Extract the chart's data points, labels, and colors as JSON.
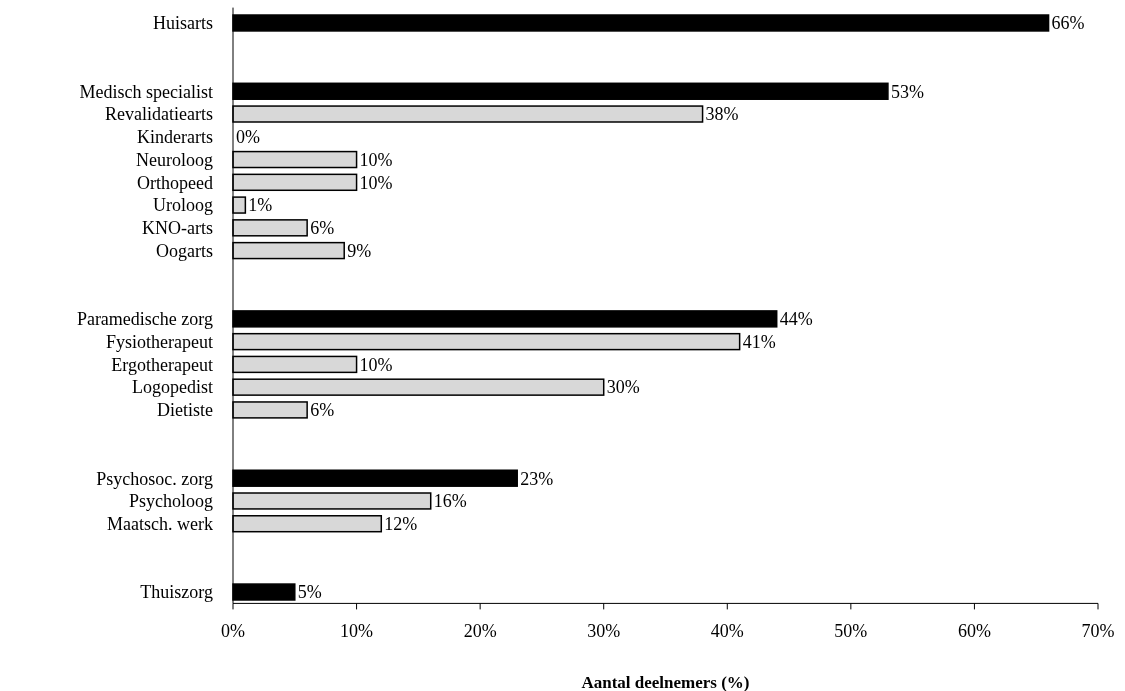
{
  "chart_data": {
    "type": "bar",
    "orientation": "horizontal",
    "xlabel": "Aantal deelnemers (%)",
    "categories": [
      "Huisarts",
      null,
      null,
      "Medisch specialist",
      "Revalidatiearts",
      "Kinderarts",
      "Neuroloog",
      "Orthopeed",
      "Uroloog",
      "KNO-arts",
      "Oogarts",
      null,
      null,
      "Paramedische zorg",
      "Fysiotherapeut",
      "Ergotherapeut",
      "Logopedist",
      "Dietiste",
      null,
      null,
      "Psychosoc. zorg",
      "Psycholoog",
      "Maatsch. werk",
      null,
      null,
      "Thuiszorg"
    ],
    "values": [
      66,
      null,
      null,
      53,
      38,
      0,
      10,
      10,
      1,
      6,
      9,
      null,
      null,
      44,
      41,
      10,
      30,
      6,
      null,
      null,
      23,
      16,
      12,
      null,
      null,
      5
    ],
    "colors": [
      "#000000",
      null,
      null,
      "#000000",
      "#d8d8d8",
      "#d8d8d8",
      "#d8d8d8",
      "#d8d8d8",
      "#d8d8d8",
      "#d8d8d8",
      "#d8d8d8",
      null,
      null,
      "#000000",
      "#d8d8d8",
      "#d8d8d8",
      "#d8d8d8",
      "#d8d8d8",
      null,
      null,
      "#000000",
      "#d8d8d8",
      "#d8d8d8",
      null,
      null,
      "#000000"
    ],
    "value_labels": [
      "66%",
      null,
      null,
      "53%",
      "38%",
      "0%",
      "10%",
      "10%",
      "1%",
      "6%",
      "9%",
      null,
      null,
      "44%",
      "41%",
      "10%",
      "30%",
      "6%",
      null,
      null,
      "23%",
      "16%",
      "12%",
      null,
      null,
      "5%"
    ],
    "xlim": [
      0,
      70
    ],
    "xticks": [
      {
        "value": 0,
        "label": "0%"
      },
      {
        "value": 10,
        "label": "10%"
      },
      {
        "value": 20,
        "label": "20%"
      },
      {
        "value": 30,
        "label": "30%"
      },
      {
        "value": 40,
        "label": "40%"
      },
      {
        "value": 50,
        "label": "50%"
      },
      {
        "value": 60,
        "label": "60%"
      },
      {
        "value": 70,
        "label": "70%"
      }
    ],
    "grid": false
  }
}
